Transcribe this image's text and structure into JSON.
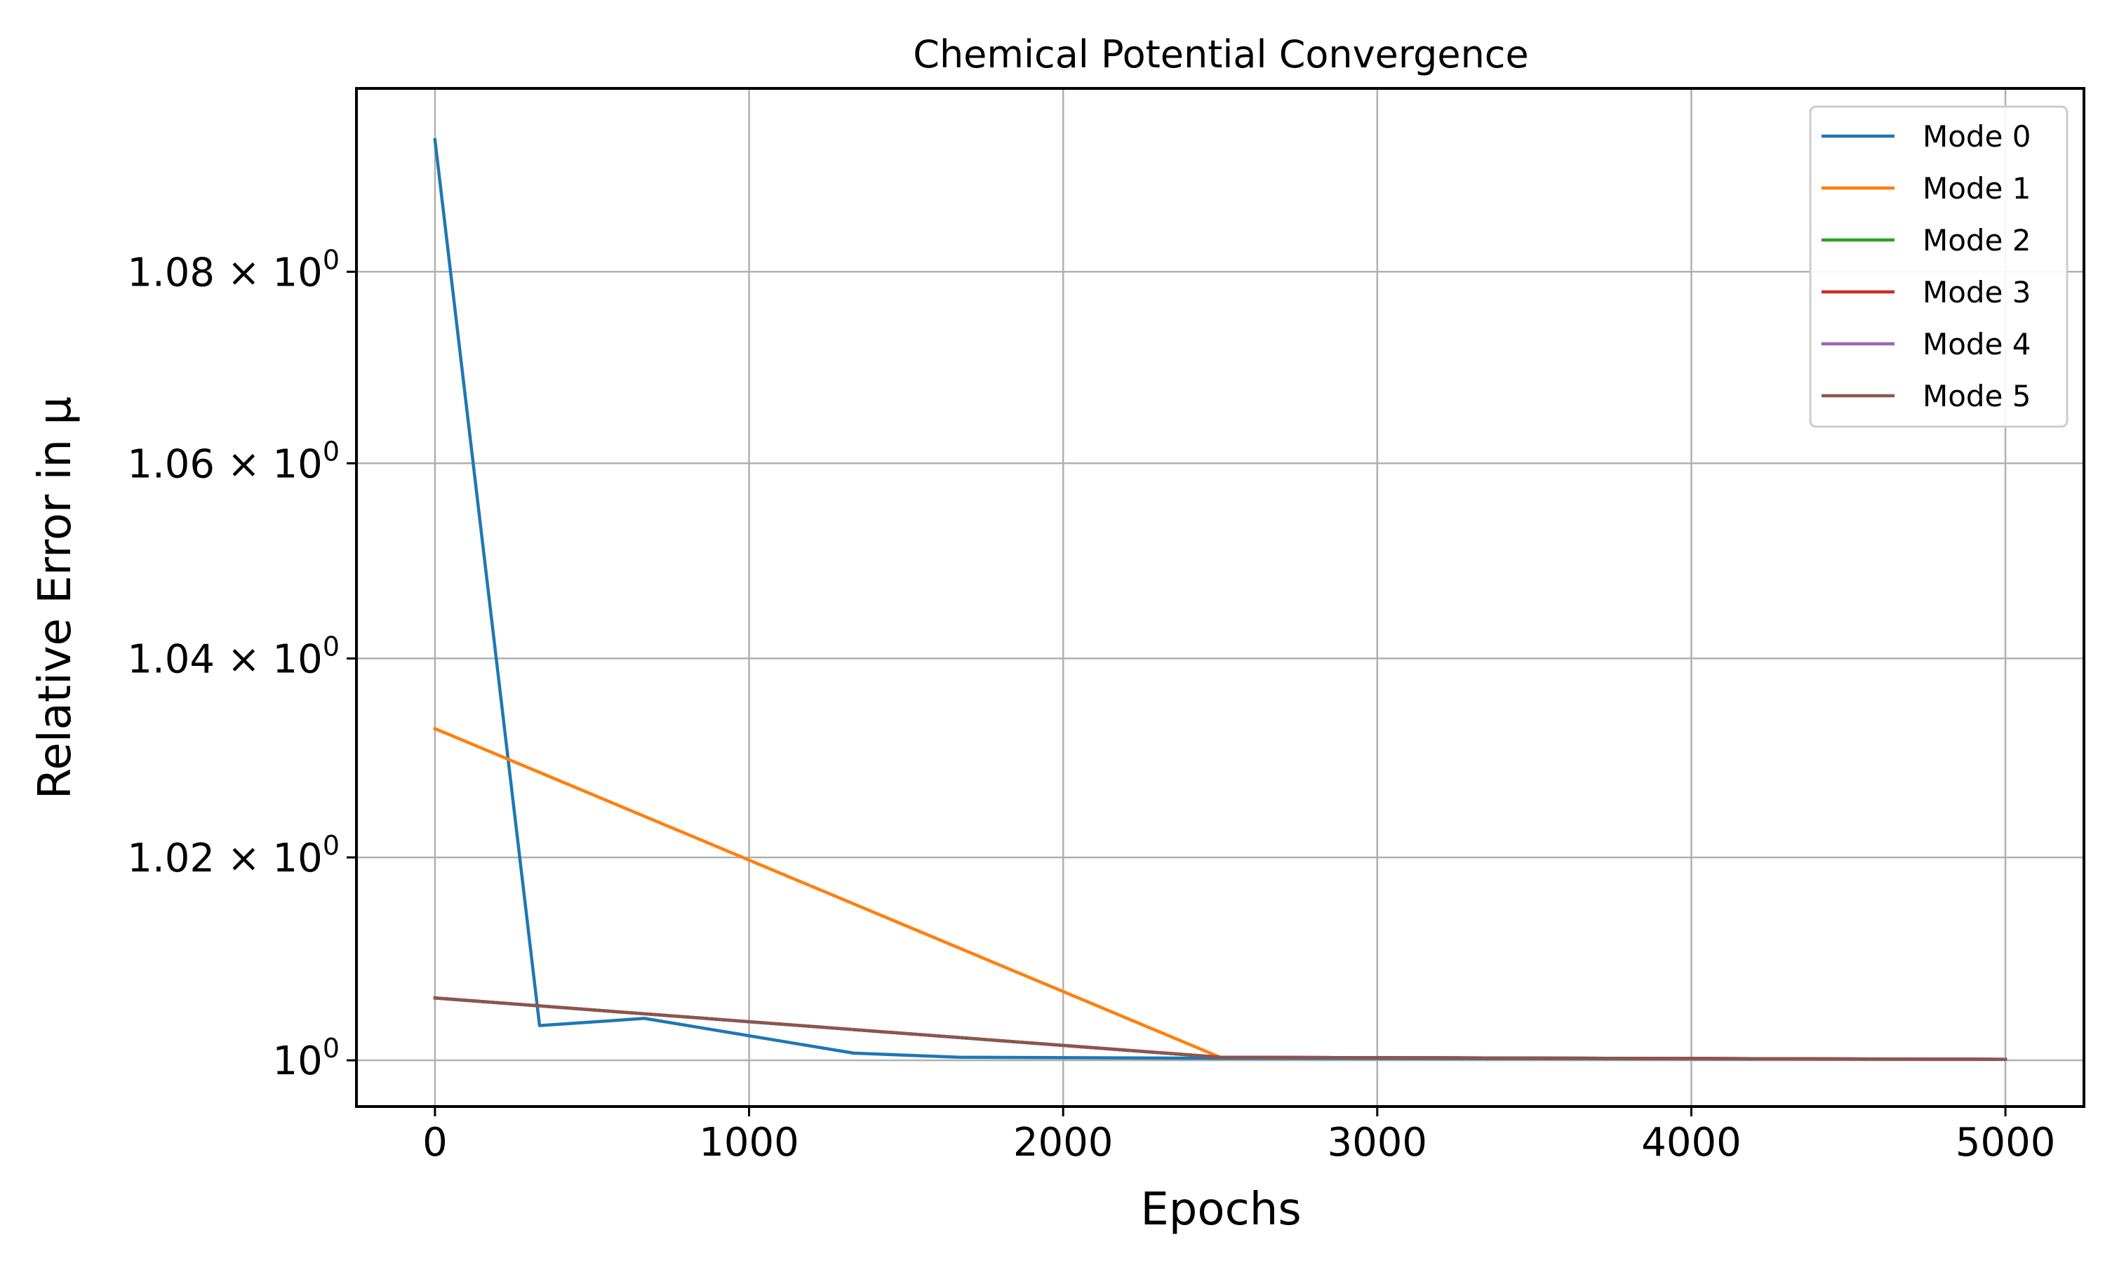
{
  "chart_data": {
    "type": "line",
    "title": "Chemical Potential Convergence",
    "xlabel": "Epochs",
    "ylabel": "Relative Error in μ",
    "xlim": [
      -250,
      5250
    ],
    "ylim": [
      0.9955,
      1.0995
    ],
    "yscale": "log",
    "grid": true,
    "legend_position": "top-right",
    "x_ticks": [
      {
        "value": 0,
        "label": "0"
      },
      {
        "value": 1000,
        "label": "1000"
      },
      {
        "value": 2000,
        "label": "2000"
      },
      {
        "value": 3000,
        "label": "3000"
      },
      {
        "value": 4000,
        "label": "4000"
      },
      {
        "value": 5000,
        "label": "5000"
      }
    ],
    "y_ticks": [
      {
        "value": 1.0,
        "base": "10",
        "mant": "",
        "exp": "0"
      },
      {
        "value": 1.02,
        "base": "10",
        "mant": "1.02 × ",
        "exp": "0"
      },
      {
        "value": 1.04,
        "base": "10",
        "mant": "1.04 × ",
        "exp": "0"
      },
      {
        "value": 1.06,
        "base": "10",
        "mant": "1.06 × ",
        "exp": "0"
      },
      {
        "value": 1.08,
        "base": "10",
        "mant": "1.08 × ",
        "exp": "0"
      }
    ],
    "series": [
      {
        "name": "Mode 0",
        "color": "#1f77b4",
        "x": [
          0,
          333,
          667,
          1333,
          1667,
          2500,
          5000
        ],
        "y": [
          1.094,
          1.0034,
          1.0041,
          1.0007,
          1.0003,
          1.0002,
          1.0001
        ]
      },
      {
        "name": "Mode 1",
        "color": "#ff7f0e",
        "x": [
          0,
          2500,
          5000
        ],
        "y": [
          1.0329,
          1.0003,
          1.0001
        ]
      },
      {
        "name": "Mode 2",
        "color": "#2ca02c",
        "x": [
          0,
          2500,
          5000
        ],
        "y": [
          1.0061,
          1.0003,
          1.0001
        ]
      },
      {
        "name": "Mode 3",
        "color": "#d62728",
        "x": [
          0,
          2500,
          5000
        ],
        "y": [
          1.0061,
          1.0003,
          1.0001
        ]
      },
      {
        "name": "Mode 4",
        "color": "#9467bd",
        "x": [
          0,
          2500,
          5000
        ],
        "y": [
          1.0061,
          1.0003,
          1.0001
        ]
      },
      {
        "name": "Mode 5",
        "color": "#8c564b",
        "x": [
          0,
          2500,
          5000
        ],
        "y": [
          1.0061,
          1.0003,
          1.0001
        ]
      }
    ]
  }
}
